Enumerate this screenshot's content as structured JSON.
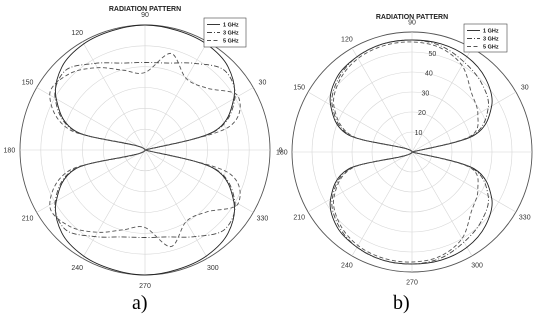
{
  "captions": {
    "a": "a)",
    "b": "b)"
  },
  "chart_data": [
    {
      "type": "polar-line",
      "title": "RADIATION PATTERN",
      "angle_ticks": [
        0,
        30,
        60,
        90,
        120,
        150,
        180,
        210,
        240,
        270,
        300,
        330
      ],
      "radial_ticks": [],
      "rlim": [
        0,
        1
      ],
      "grid": true,
      "legend_position": "top-right",
      "series": [
        {
          "name": "1 GHz",
          "style": "solid",
          "color": "#222222",
          "theta": [
            0,
            15,
            30,
            45,
            60,
            75,
            90,
            105,
            120,
            135,
            150,
            165,
            180
          ],
          "r": [
            0.0,
            0.57,
            0.82,
            0.94,
            0.98,
            0.99,
            1.0,
            0.99,
            0.98,
            0.94,
            0.82,
            0.57,
            0.0
          ]
        },
        {
          "name": "3 GHz",
          "style": "dashdot",
          "color": "#444444",
          "theta": [
            0,
            15,
            30,
            45,
            60,
            75,
            90,
            105,
            120,
            135,
            150,
            165,
            180
          ],
          "r": [
            0.0,
            0.58,
            0.83,
            0.9,
            0.8,
            0.72,
            0.7,
            0.72,
            0.8,
            0.9,
            0.83,
            0.58,
            0.0
          ]
        },
        {
          "name": "5 GHz",
          "style": "dashed",
          "color": "#555555",
          "theta": [
            0,
            15,
            30,
            45,
            60,
            75,
            90,
            105,
            120,
            135,
            150,
            165,
            180
          ],
          "r": [
            0.0,
            0.68,
            0.86,
            0.7,
            0.66,
            0.8,
            0.62,
            0.66,
            0.76,
            0.86,
            0.88,
            0.62,
            0.0
          ]
        }
      ]
    },
    {
      "type": "polar-line",
      "title": "RADIATION PATTERN",
      "angle_ticks": [
        0,
        30,
        60,
        90,
        120,
        150,
        180,
        210,
        240,
        270,
        300,
        330
      ],
      "radial_ticks": [
        10,
        20,
        30,
        40,
        50
      ],
      "rlim": [
        0,
        60
      ],
      "grid": true,
      "legend_position": "top-right",
      "series": [
        {
          "name": "1 GHz",
          "style": "solid",
          "color": "#222222",
          "theta": [
            0,
            15,
            30,
            45,
            60,
            75,
            90,
            105,
            120,
            135,
            150,
            165,
            180
          ],
          "r": [
            0,
            32,
            46,
            52,
            55,
            56,
            56,
            56,
            55,
            53,
            47,
            33,
            0
          ]
        },
        {
          "name": "3 GHz",
          "style": "dashdot",
          "color": "#444444",
          "theta": [
            0,
            15,
            30,
            45,
            60,
            75,
            90,
            105,
            120,
            135,
            150,
            165,
            180
          ],
          "r": [
            0,
            31,
            44,
            49,
            52,
            55,
            56,
            56,
            55,
            52,
            46,
            32,
            0
          ]
        },
        {
          "name": "5 GHz",
          "style": "dashed",
          "color": "#555555",
          "theta": [
            0,
            15,
            30,
            45,
            60,
            75,
            90,
            105,
            120,
            135,
            150,
            165,
            180
          ],
          "r": [
            0,
            30,
            38,
            42,
            50,
            54,
            55,
            55,
            54,
            51,
            45,
            31,
            0
          ]
        }
      ]
    }
  ]
}
